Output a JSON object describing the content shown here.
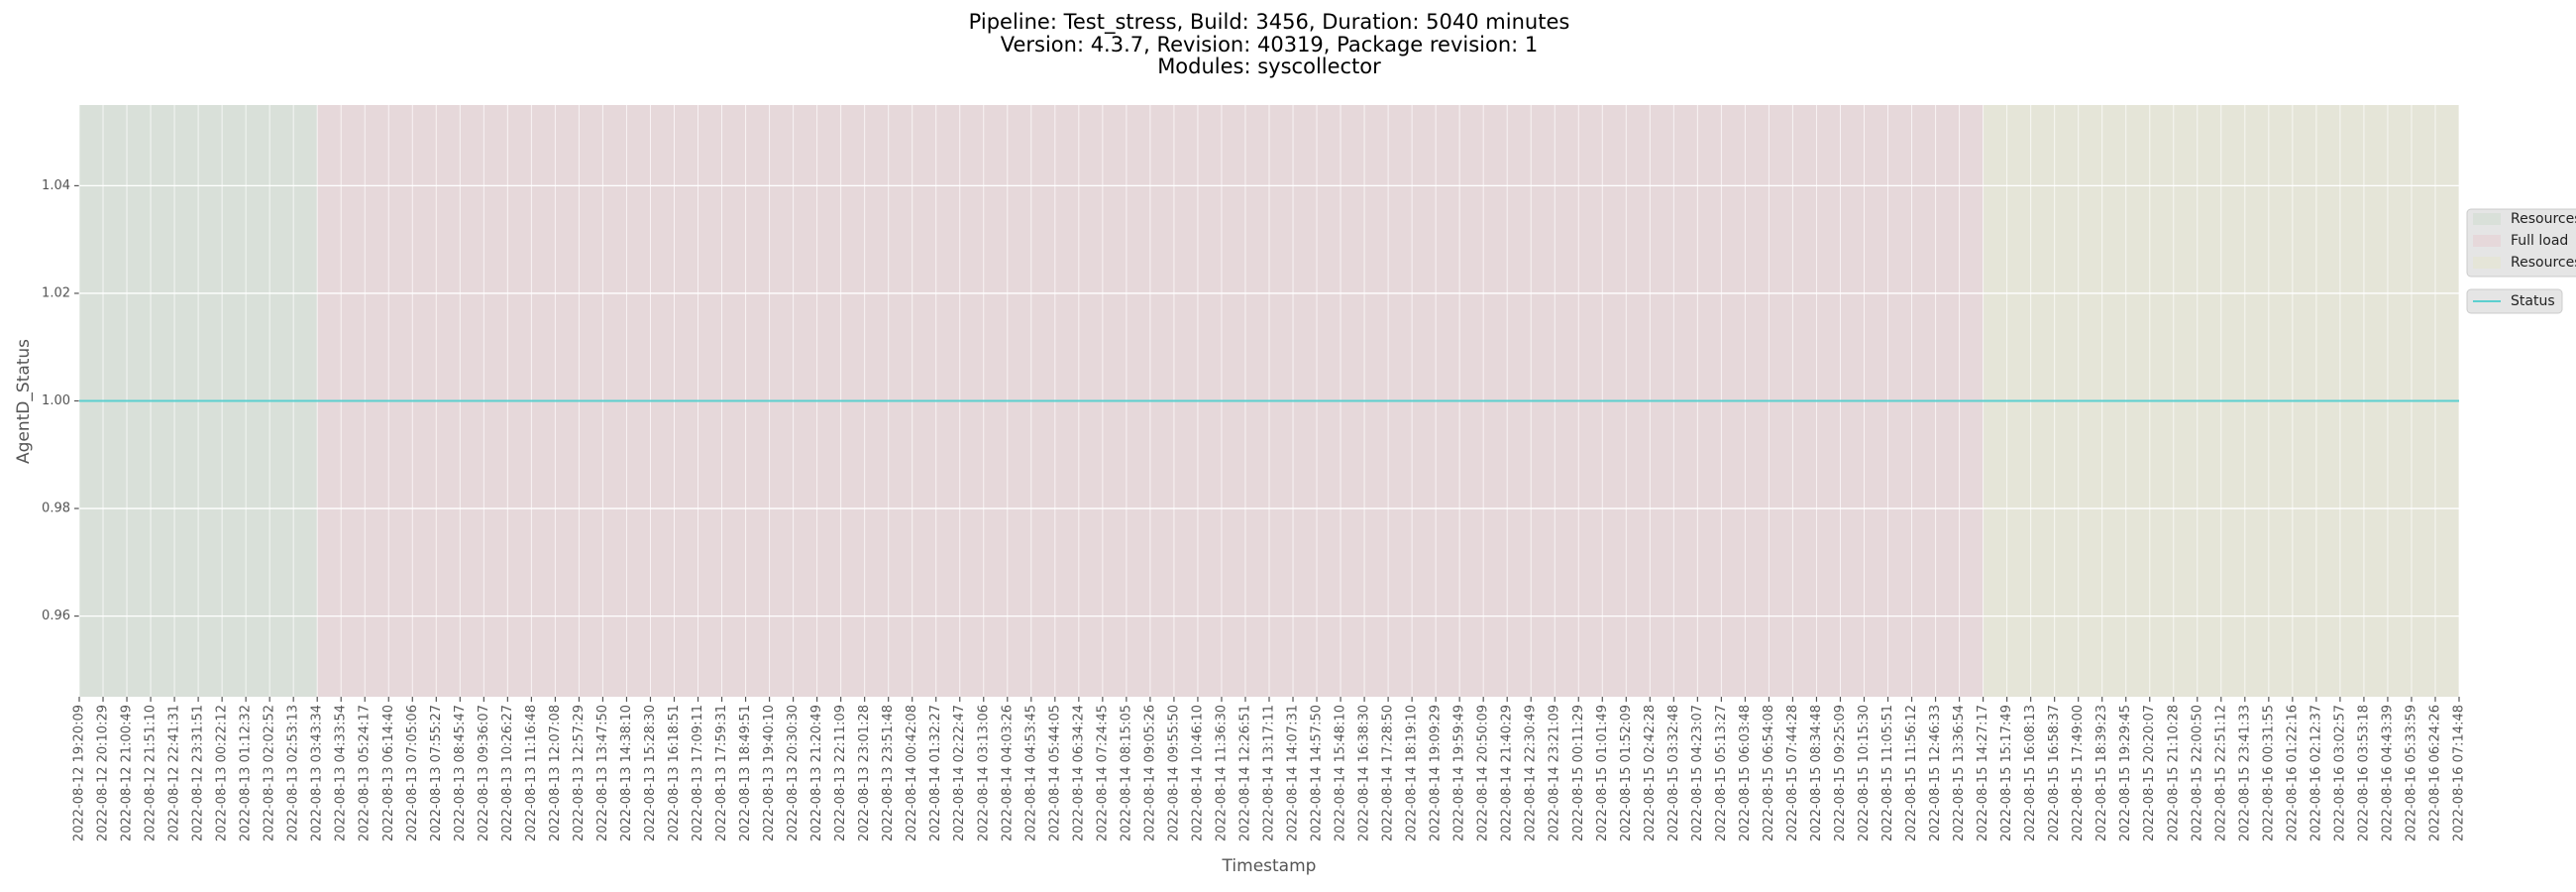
{
  "chart_data": {
    "type": "line",
    "title": [
      "Pipeline: Test_stress, Build: 3456, Duration: 5040 minutes",
      "Version: 4.3.7, Revision: 40319, Package revision: 1",
      "Modules: syscollector"
    ],
    "x_label": "Timestamp",
    "y_label": "AgentD_Status",
    "categories": [
      "2022-08-12 19:20:09",
      "2022-08-12 20:10:29",
      "2022-08-12 21:00:49",
      "2022-08-12 21:51:10",
      "2022-08-12 22:41:31",
      "2022-08-12 23:31:51",
      "2022-08-13 00:22:12",
      "2022-08-13 01:12:32",
      "2022-08-13 02:02:52",
      "2022-08-13 02:53:13",
      "2022-08-13 03:43:34",
      "2022-08-13 04:33:54",
      "2022-08-13 05:24:17",
      "2022-08-13 06:14:40",
      "2022-08-13 07:05:06",
      "2022-08-13 07:55:27",
      "2022-08-13 08:45:47",
      "2022-08-13 09:36:07",
      "2022-08-13 10:26:27",
      "2022-08-13 11:16:48",
      "2022-08-13 12:07:08",
      "2022-08-13 12:57:29",
      "2022-08-13 13:47:50",
      "2022-08-13 14:38:10",
      "2022-08-13 15:28:30",
      "2022-08-13 16:18:51",
      "2022-08-13 17:09:11",
      "2022-08-13 17:59:31",
      "2022-08-13 18:49:51",
      "2022-08-13 19:40:10",
      "2022-08-13 20:30:30",
      "2022-08-13 21:20:49",
      "2022-08-13 22:11:09",
      "2022-08-13 23:01:28",
      "2022-08-13 23:51:48",
      "2022-08-14 00:42:08",
      "2022-08-14 01:32:27",
      "2022-08-14 02:22:47",
      "2022-08-14 03:13:06",
      "2022-08-14 04:03:26",
      "2022-08-14 04:53:45",
      "2022-08-14 05:44:05",
      "2022-08-14 06:34:24",
      "2022-08-14 07:24:45",
      "2022-08-14 08:15:05",
      "2022-08-14 09:05:26",
      "2022-08-14 09:55:50",
      "2022-08-14 10:46:10",
      "2022-08-14 11:36:30",
      "2022-08-14 12:26:51",
      "2022-08-14 13:17:11",
      "2022-08-14 14:07:31",
      "2022-08-14 14:57:50",
      "2022-08-14 15:48:10",
      "2022-08-14 16:38:30",
      "2022-08-14 17:28:50",
      "2022-08-14 18:19:10",
      "2022-08-14 19:09:29",
      "2022-08-14 19:59:49",
      "2022-08-14 20:50:09",
      "2022-08-14 21:40:29",
      "2022-08-14 22:30:49",
      "2022-08-14 23:21:09",
      "2022-08-15 00:11:29",
      "2022-08-15 01:01:49",
      "2022-08-15 01:52:09",
      "2022-08-15 02:42:28",
      "2022-08-15 03:32:48",
      "2022-08-15 04:23:07",
      "2022-08-15 05:13:27",
      "2022-08-15 06:03:48",
      "2022-08-15 06:54:08",
      "2022-08-15 07:44:28",
      "2022-08-15 08:34:48",
      "2022-08-15 09:25:09",
      "2022-08-15 10:15:30",
      "2022-08-15 11:05:51",
      "2022-08-15 11:56:12",
      "2022-08-15 12:46:33",
      "2022-08-15 13:36:54",
      "2022-08-15 14:27:17",
      "2022-08-15 15:17:49",
      "2022-08-15 16:08:13",
      "2022-08-15 16:58:37",
      "2022-08-15 17:49:00",
      "2022-08-15 18:39:23",
      "2022-08-15 19:29:45",
      "2022-08-15 20:20:07",
      "2022-08-15 21:10:28",
      "2022-08-15 22:00:50",
      "2022-08-15 22:51:12",
      "2022-08-15 23:41:33",
      "2022-08-16 00:31:55",
      "2022-08-16 01:22:16",
      "2022-08-16 02:12:37",
      "2022-08-16 03:02:57",
      "2022-08-16 03:53:18",
      "2022-08-16 04:43:39",
      "2022-08-16 05:33:59",
      "2022-08-16 06:24:26",
      "2022-08-16 07:14:48"
    ],
    "series": [
      {
        "name": "Status",
        "color": "#5ccfcf",
        "values": [
          1,
          1,
          1,
          1,
          1,
          1,
          1,
          1,
          1,
          1,
          1,
          1,
          1,
          1,
          1,
          1,
          1,
          1,
          1,
          1,
          1,
          1,
          1,
          1,
          1,
          1,
          1,
          1,
          1,
          1,
          1,
          1,
          1,
          1,
          1,
          1,
          1,
          1,
          1,
          1,
          1,
          1,
          1,
          1,
          1,
          1,
          1,
          1,
          1,
          1,
          1,
          1,
          1,
          1,
          1,
          1,
          1,
          1,
          1,
          1,
          1,
          1,
          1,
          1,
          1,
          1,
          1,
          1,
          1,
          1,
          1,
          1,
          1,
          1,
          1,
          1,
          1,
          1,
          1,
          1,
          1,
          1,
          1,
          1,
          1,
          1,
          1,
          1,
          1,
          1,
          1,
          1,
          1,
          1,
          1,
          1,
          1,
          1,
          1,
          1,
          1
        ]
      }
    ],
    "regions": [
      {
        "name": "Resources",
        "color": "#d9e0d9",
        "start": "2022-08-12 19:20:09",
        "end": "2022-08-13 03:43:34"
      },
      {
        "name": "Full load",
        "color": "#e6d8da",
        "start": "2022-08-13 03:43:34",
        "end": "2022-08-15 14:27:17"
      },
      {
        "name": "Resources",
        "color": "#e5e5d8",
        "start": "2022-08-15 14:27:17",
        "end": "2022-08-16 07:14:48"
      }
    ],
    "ylim": [
      0.945,
      1.055
    ],
    "yticks": [
      0.96,
      0.98,
      {
        "value": 1,
        "label": "1.00"
      },
      1.02,
      1.04
    ],
    "grid": true
  }
}
